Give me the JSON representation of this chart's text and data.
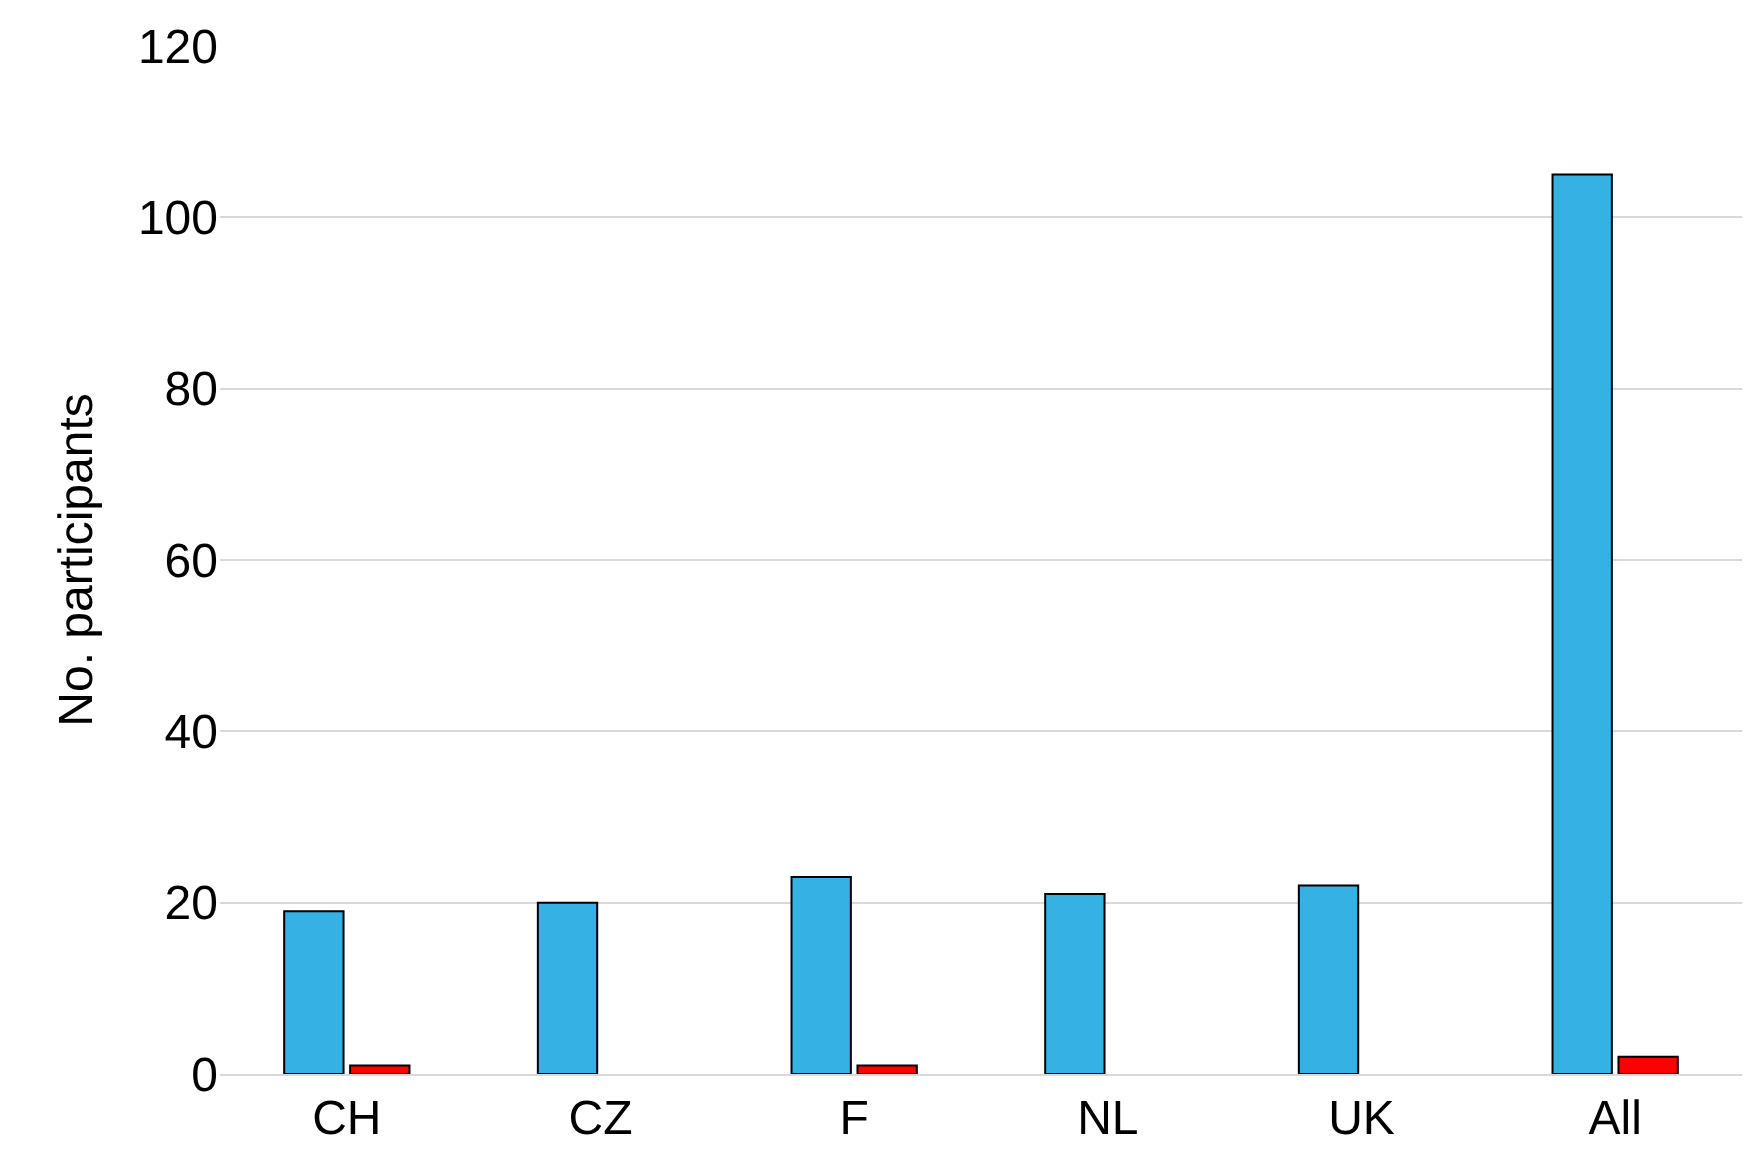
{
  "chart_data": {
    "type": "bar",
    "ylabel": "No. participants",
    "categories": [
      "CH",
      "CZ",
      "F",
      "NL",
      "UK",
      "All"
    ],
    "series": [
      {
        "color": "#35b1e4",
        "values": [
          19,
          20,
          23,
          21,
          22,
          105
        ]
      },
      {
        "color": "#ff0000",
        "values": [
          1,
          0,
          1,
          0,
          0,
          2
        ]
      }
    ],
    "ylim": [
      0,
      120
    ],
    "yticks": [
      0,
      20,
      40,
      60,
      80,
      100,
      120
    ],
    "grid": "y"
  }
}
